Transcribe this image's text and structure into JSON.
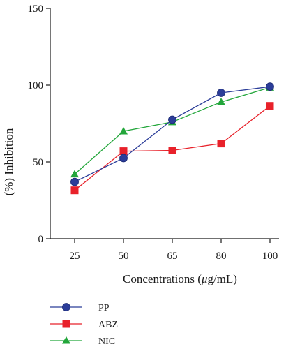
{
  "chart_data": {
    "type": "line",
    "title": "",
    "xlabel_prefix": "Concentrations (",
    "xlabel_mu": "μ",
    "xlabel_suffix": "g/mL)",
    "xlabel": "Concentrations (μg/mL)",
    "ylabel": "(%) Inhibition",
    "categories": [
      "25",
      "50",
      "65",
      "80",
      "100"
    ],
    "ylim": [
      0,
      150
    ],
    "yticks": [
      0,
      50,
      100,
      150
    ],
    "grid": false,
    "legend_position": "bottom-left",
    "series": [
      {
        "name": "PP",
        "color": "#2b3d99",
        "marker": "circle",
        "values": [
          37,
          52.5,
          77.5,
          95,
          99
        ]
      },
      {
        "name": "ABZ",
        "color": "#e8212a",
        "marker": "square",
        "values": [
          31.5,
          57,
          57.5,
          62,
          86.5
        ]
      },
      {
        "name": "NIC",
        "color": "#22a63a",
        "marker": "triangle",
        "values": [
          42,
          70,
          76,
          89,
          98.5
        ]
      }
    ]
  }
}
